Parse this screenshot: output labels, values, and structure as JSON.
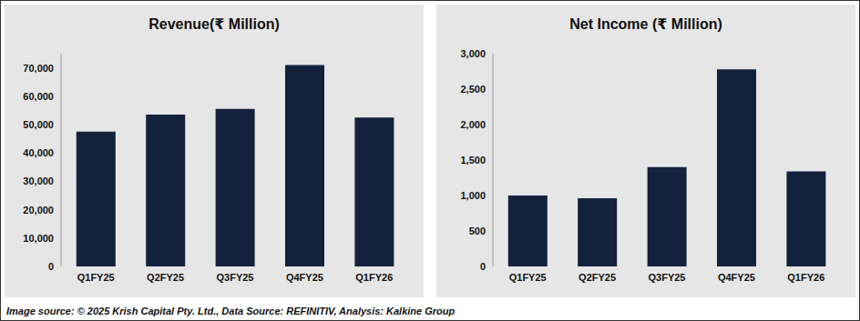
{
  "chart_data": [
    {
      "type": "bar",
      "title": "Revenue(₹ Million)",
      "categories": [
        "Q1FY25",
        "Q2FY25",
        "Q3FY25",
        "Q4FY25",
        "Q1FY26"
      ],
      "values": [
        47500,
        53500,
        55500,
        71000,
        52500
      ],
      "color": "#14213d",
      "ylim": [
        0,
        75000
      ],
      "yticks": [
        0,
        {
          "value": 10000,
          "label": "10,000"
        },
        {
          "value": 20000,
          "label": "20,000"
        },
        {
          "value": 30000,
          "label": "30,000"
        },
        {
          "value": 40000,
          "label": "40,000"
        },
        {
          "value": 50000,
          "label": "50,000"
        },
        {
          "value": 60000,
          "label": "60,000"
        },
        {
          "value": 70000,
          "label": "70,000"
        }
      ],
      "grid": false
    },
    {
      "type": "bar",
      "title": "Net Income (₹ Million)",
      "categories": [
        "Q1FY25",
        "Q2FY25",
        "Q3FY25",
        "Q4FY25",
        "Q1FY26"
      ],
      "values": [
        1000,
        960,
        1400,
        2780,
        1340
      ],
      "color": "#14213d",
      "ylim": [
        0,
        3000
      ],
      "yticks": [
        0,
        500,
        {
          "value": 1000,
          "label": "1,000"
        },
        {
          "value": 1500,
          "label": "1,500"
        },
        {
          "value": 2000,
          "label": "2,000"
        },
        {
          "value": 2500,
          "label": "2,500"
        },
        {
          "value": 3000,
          "label": "3,000"
        }
      ],
      "grid": false
    }
  ],
  "source": "Image source: © 2025 Krish Capital Pty. Ltd., Data Source: REFINITIV, Analysis: Kalkine Group"
}
